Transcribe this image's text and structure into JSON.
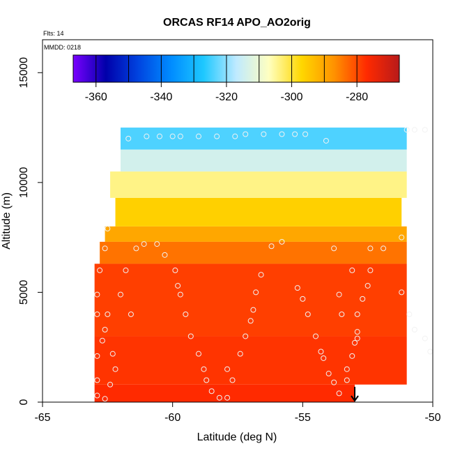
{
  "chart_data": {
    "type": "heatmap",
    "title": "ORCAS RF14 APO_AO2orig",
    "annotations": {
      "flights": "Flts: 14",
      "date": "MMDD: 0218"
    },
    "xlabel": "Latitude (deg N)",
    "ylabel": "Altitude (m)",
    "xlim": [
      -65,
      -50
    ],
    "ylim": [
      0,
      16500
    ],
    "x_ticks": [
      -65,
      -60,
      -55,
      -50
    ],
    "x_tick_labels": [
      "-65",
      "-60",
      "-55",
      "-50"
    ],
    "y_ticks": [
      0,
      5000,
      10000,
      15000
    ],
    "y_tick_labels": [
      "0",
      "5000",
      "10000",
      "15000"
    ],
    "grid": false,
    "colorbar": {
      "placement": "top",
      "range": [
        -367,
        -267
      ],
      "ticks": [
        -360,
        -340,
        -320,
        -300,
        -280
      ],
      "tick_labels": [
        "-360",
        "-340",
        "-320",
        "-300",
        "-280"
      ],
      "colors": [
        "#7a00ff",
        "#0000aa",
        "#0044e0",
        "#008cff",
        "#1ec8ff",
        "#bfeaff",
        "#ffffc0",
        "#ffd700",
        "#ff9200",
        "#ff2a00",
        "#b81a1a"
      ]
    },
    "field": {
      "description_rows": [
        {
          "alt": [
            0,
            800
          ],
          "lat": [
            -63,
            -53
          ],
          "value": -277
        },
        {
          "alt": [
            800,
            3000
          ],
          "lat": [
            -63,
            -51
          ],
          "value": -278
        },
        {
          "alt": [
            3000,
            6300
          ],
          "lat": [
            -63,
            -51
          ],
          "value": -279
        },
        {
          "alt": [
            6300,
            7300
          ],
          "lat": [
            -62.8,
            -51
          ],
          "value": -284
        },
        {
          "alt": [
            7300,
            8000
          ],
          "lat": [
            -62.6,
            -51
          ],
          "value": -290
        },
        {
          "alt": [
            8000,
            9300
          ],
          "lat": [
            -62.2,
            -51.2
          ],
          "value": -296
        },
        {
          "alt": [
            9300,
            10500
          ],
          "lat": [
            -62.4,
            -51
          ],
          "value": -304
        },
        {
          "alt": [
            10500,
            11500
          ],
          "lat": [
            -62,
            -51
          ],
          "value": -314
        },
        {
          "alt": [
            11500,
            12500
          ],
          "lat": [
            -62,
            -51
          ],
          "value": -324
        }
      ]
    },
    "points": [
      {
        "lat": -62.9,
        "alt": 300
      },
      {
        "lat": -62.6,
        "alt": 150
      },
      {
        "lat": -62.4,
        "alt": 800
      },
      {
        "lat": -62.2,
        "alt": 1500
      },
      {
        "lat": -62.9,
        "alt": 1000
      },
      {
        "lat": -62.9,
        "alt": 2100
      },
      {
        "lat": -62.7,
        "alt": 2800
      },
      {
        "lat": -62.6,
        "alt": 3300
      },
      {
        "lat": -62.9,
        "alt": 4000
      },
      {
        "lat": -62.5,
        "alt": 4000
      },
      {
        "lat": -62.3,
        "alt": 2200
      },
      {
        "lat": -62.9,
        "alt": 4900
      },
      {
        "lat": -62.8,
        "alt": 6000
      },
      {
        "lat": -62.6,
        "alt": 7000
      },
      {
        "lat": -62.5,
        "alt": 7900
      },
      {
        "lat": -62.0,
        "alt": 4900
      },
      {
        "lat": -61.8,
        "alt": 6000
      },
      {
        "lat": -61.6,
        "alt": 4000
      },
      {
        "lat": -61.4,
        "alt": 7000
      },
      {
        "lat": -61.1,
        "alt": 7200
      },
      {
        "lat": -60.6,
        "alt": 7200
      },
      {
        "lat": -60.3,
        "alt": 6700
      },
      {
        "lat": -59.9,
        "alt": 6000
      },
      {
        "lat": -59.8,
        "alt": 5300
      },
      {
        "lat": -59.7,
        "alt": 4900
      },
      {
        "lat": -59.5,
        "alt": 4000
      },
      {
        "lat": -59.3,
        "alt": 3000
      },
      {
        "lat": -59.0,
        "alt": 2200
      },
      {
        "lat": -58.8,
        "alt": 1500
      },
      {
        "lat": -58.7,
        "alt": 1000
      },
      {
        "lat": -58.5,
        "alt": 500
      },
      {
        "lat": -58.2,
        "alt": 200
      },
      {
        "lat": -57.9,
        "alt": 200
      },
      {
        "lat": -57.7,
        "alt": 1000
      },
      {
        "lat": -57.9,
        "alt": 1500
      },
      {
        "lat": -57.4,
        "alt": 2200
      },
      {
        "lat": -57.2,
        "alt": 3000
      },
      {
        "lat": -57.0,
        "alt": 3700
      },
      {
        "lat": -56.9,
        "alt": 4200
      },
      {
        "lat": -56.8,
        "alt": 5000
      },
      {
        "lat": -56.6,
        "alt": 5800
      },
      {
        "lat": -56.2,
        "alt": 7100
      },
      {
        "lat": -55.8,
        "alt": 7300
      },
      {
        "lat": -55.2,
        "alt": 5200
      },
      {
        "lat": -55.0,
        "alt": 4700
      },
      {
        "lat": -54.8,
        "alt": 4000
      },
      {
        "lat": -54.5,
        "alt": 3000
      },
      {
        "lat": -54.3,
        "alt": 2300
      },
      {
        "lat": -54.2,
        "alt": 2000
      },
      {
        "lat": -54.0,
        "alt": 1300
      },
      {
        "lat": -53.8,
        "alt": 900
      },
      {
        "lat": -53.6,
        "alt": 400
      },
      {
        "lat": -53.3,
        "alt": 1000
      },
      {
        "lat": -53.3,
        "alt": 1500
      },
      {
        "lat": -53.1,
        "alt": 2100
      },
      {
        "lat": -53.0,
        "alt": 2700
      },
      {
        "lat": -52.9,
        "alt": 2900
      },
      {
        "lat": -52.9,
        "alt": 3200
      },
      {
        "lat": -53.5,
        "alt": 4000
      },
      {
        "lat": -53.6,
        "alt": 4900
      },
      {
        "lat": -52.9,
        "alt": 4000
      },
      {
        "lat": -52.7,
        "alt": 4700
      },
      {
        "lat": -52.5,
        "alt": 5300
      },
      {
        "lat": -52.4,
        "alt": 6000
      },
      {
        "lat": -53.1,
        "alt": 6000
      },
      {
        "lat": -52.4,
        "alt": 7000
      },
      {
        "lat": -53.8,
        "alt": 7000
      },
      {
        "lat": -51.9,
        "alt": 7000
      },
      {
        "lat": -51.2,
        "alt": 7500
      },
      {
        "lat": -51.2,
        "alt": 5000
      },
      {
        "lat": -50.9,
        "alt": 4000
      },
      {
        "lat": -50.7,
        "alt": 3300
      },
      {
        "lat": -50.3,
        "alt": 2900
      },
      {
        "lat": -50.1,
        "alt": 2300
      },
      {
        "lat": -51.0,
        "alt": 12400
      },
      {
        "lat": -50.7,
        "alt": 12400
      },
      {
        "lat": -50.3,
        "alt": 12400
      },
      {
        "lat": -60.5,
        "alt": 12100
      },
      {
        "lat": -61.0,
        "alt": 12100
      },
      {
        "lat": -61.7,
        "alt": 12000
      },
      {
        "lat": -59.7,
        "alt": 12100
      },
      {
        "lat": -59.0,
        "alt": 12100
      },
      {
        "lat": -58.3,
        "alt": 12100
      },
      {
        "lat": -57.6,
        "alt": 12100
      },
      {
        "lat": -57.2,
        "alt": 12200
      },
      {
        "lat": -56.5,
        "alt": 12200
      },
      {
        "lat": -55.8,
        "alt": 12200
      },
      {
        "lat": -55.3,
        "alt": 12200
      },
      {
        "lat": -54.9,
        "alt": 12200
      },
      {
        "lat": -54.1,
        "alt": 11900
      },
      {
        "lat": -60.0,
        "alt": 12100
      }
    ],
    "marker": {
      "lat": -53.0,
      "direction": "down"
    }
  }
}
